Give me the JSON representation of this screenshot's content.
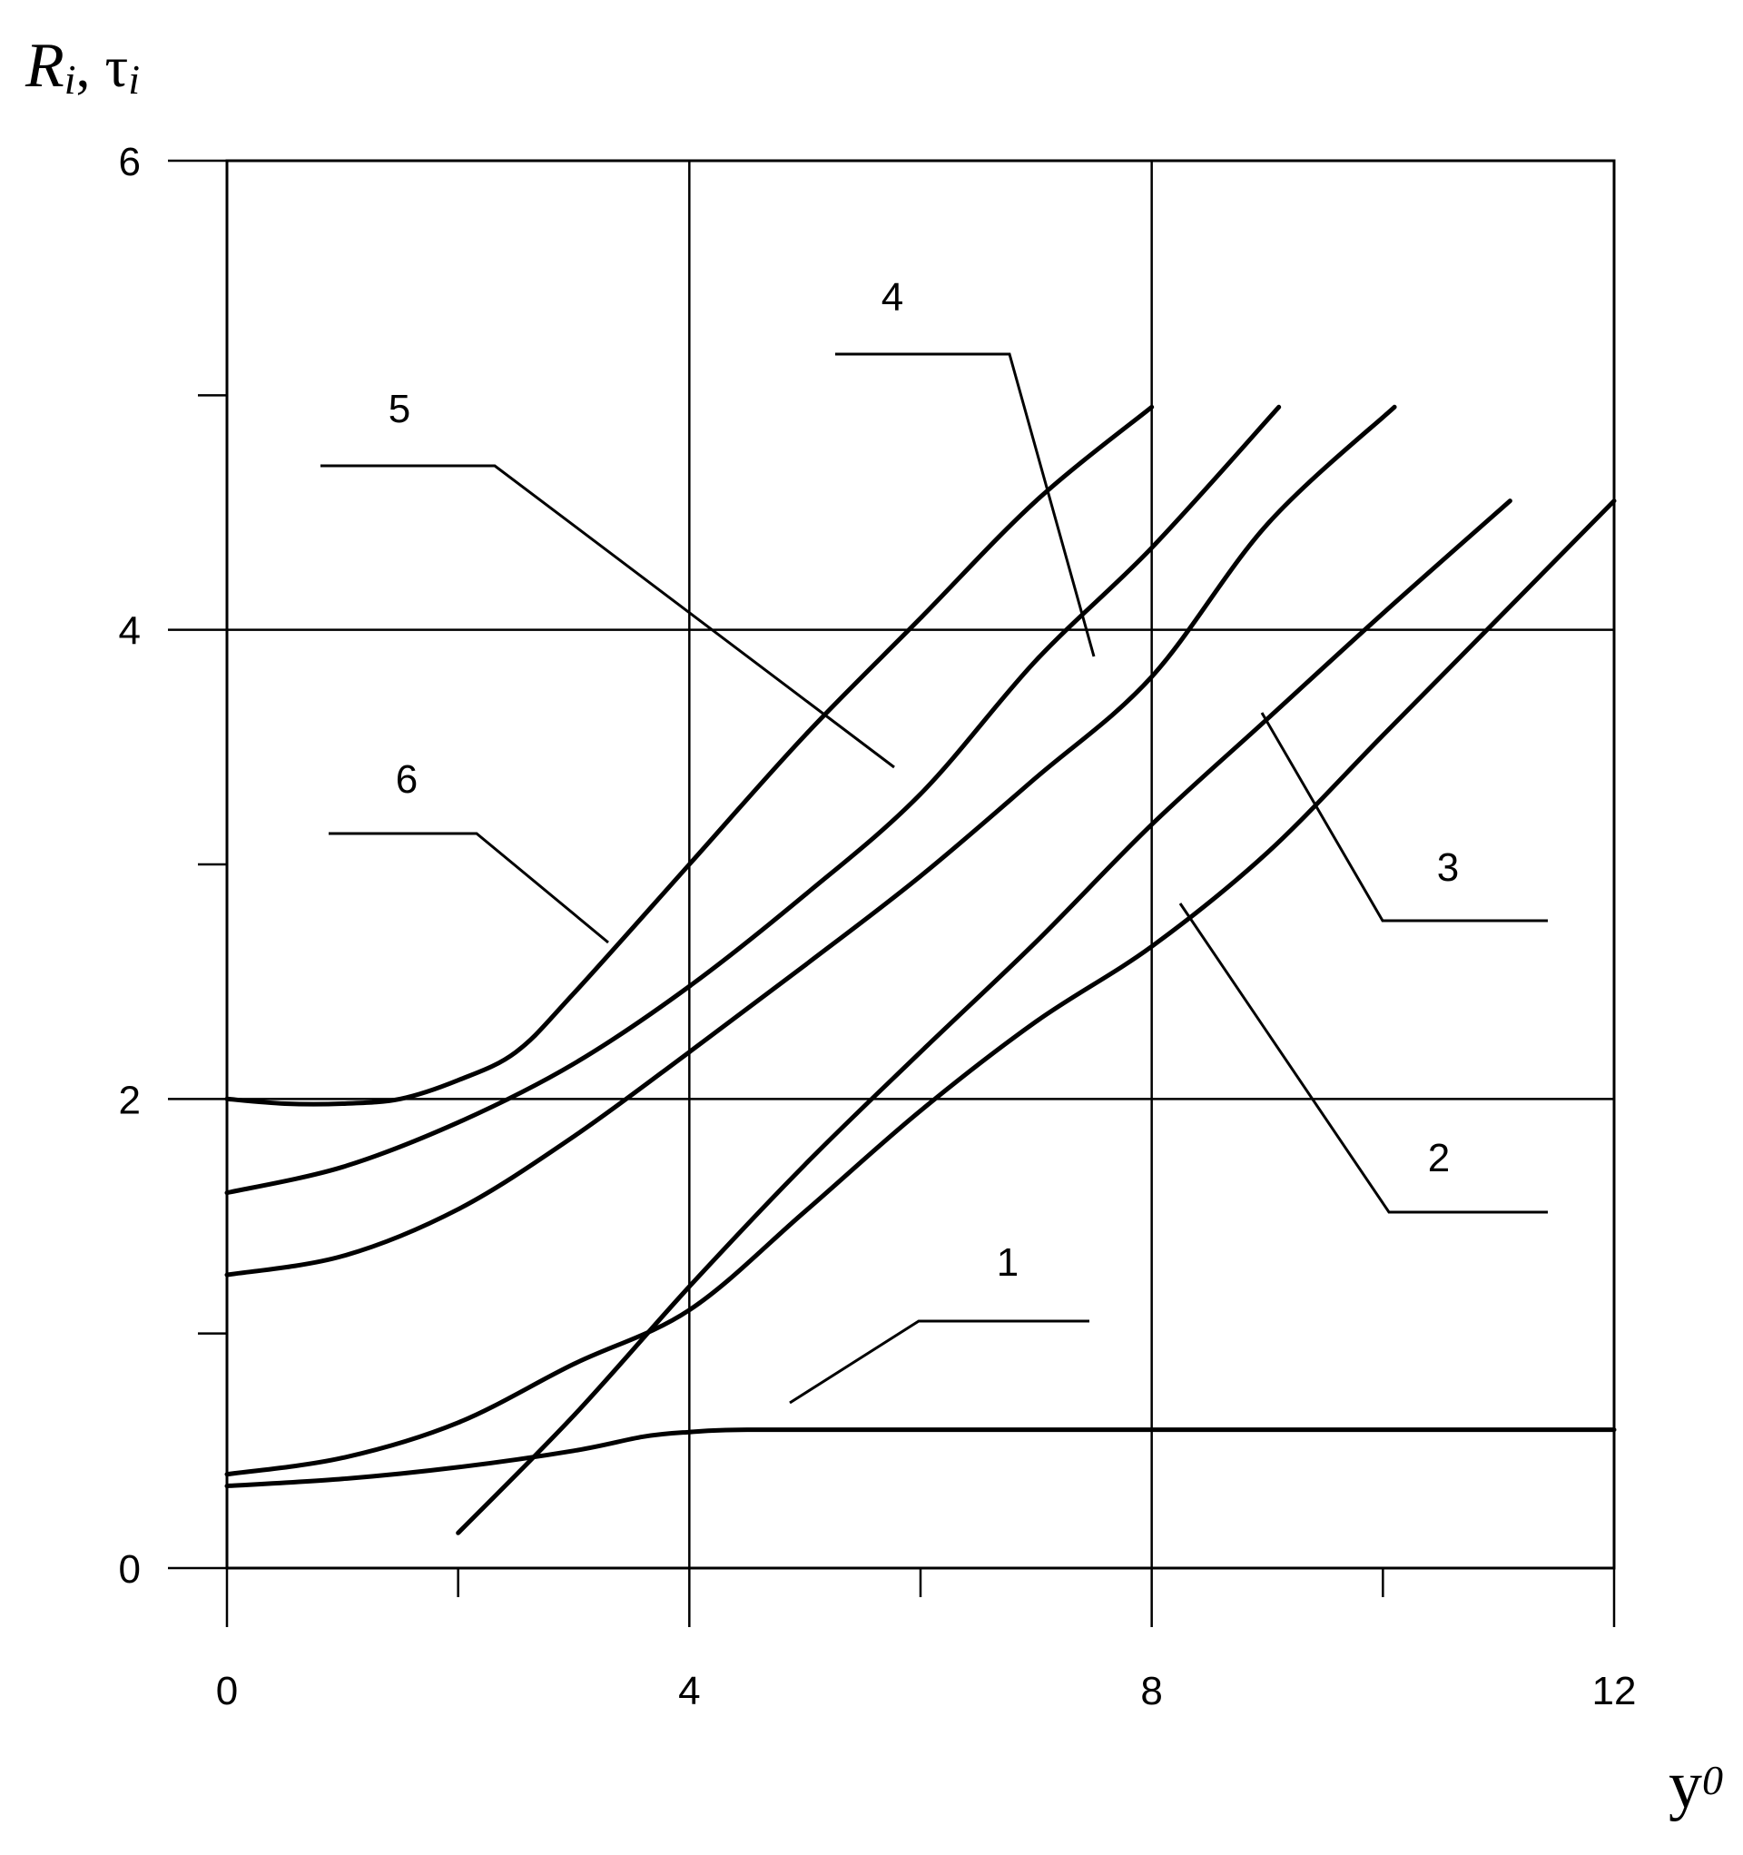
{
  "chart_data": {
    "type": "line",
    "ylabel_main": "R",
    "ylabel_sub": "i",
    "ylabel_sep": ", τ",
    "ylabel_sub2": "i",
    "xlabel_main": "y",
    "xlabel_sub": "0",
    "xlim": [
      0,
      12
    ],
    "ylim": [
      0,
      6
    ],
    "grid": true,
    "x_major_ticks": [
      0,
      4,
      8,
      12
    ],
    "x_tick_labels": [
      "0",
      "4",
      "8",
      "12"
    ],
    "x_minor_ticks": [
      2,
      6,
      10
    ],
    "y_major_ticks": [
      0,
      2,
      4,
      6
    ],
    "y_tick_labels": [
      "0",
      "2",
      "4",
      "6"
    ],
    "y_minor_ticks": [
      1,
      3,
      5
    ],
    "series": [
      {
        "name": "1",
        "x": [
          0,
          1,
          2,
          3,
          3.6,
          4,
          4.5,
          6,
          8,
          10,
          12
        ],
        "y": [
          0.35,
          0.38,
          0.43,
          0.5,
          0.56,
          0.58,
          0.59,
          0.59,
          0.59,
          0.59,
          0.59
        ]
      },
      {
        "name": "2",
        "x": [
          0,
          1,
          2,
          3,
          4,
          5,
          6,
          7,
          8,
          9,
          10,
          11,
          12
        ],
        "y": [
          0.4,
          0.47,
          0.62,
          0.87,
          1.1,
          1.52,
          1.95,
          2.33,
          2.65,
          3.05,
          3.55,
          4.05,
          4.55
        ]
      },
      {
        "name": "3",
        "x": [
          2,
          3,
          4,
          5,
          6,
          7,
          8,
          9,
          10,
          11.1
        ],
        "y": [
          0.15,
          0.65,
          1.2,
          1.72,
          2.2,
          2.67,
          3.17,
          3.62,
          4.07,
          4.55
        ]
      },
      {
        "name": "4",
        "x": [
          0,
          1,
          2,
          3,
          4,
          5,
          6,
          7,
          8,
          9,
          10.1
        ],
        "y": [
          1.25,
          1.33,
          1.53,
          1.84,
          2.2,
          2.57,
          2.95,
          3.37,
          3.8,
          4.45,
          4.95
        ]
      },
      {
        "name": "5",
        "x": [
          0,
          1,
          2,
          3,
          4,
          5,
          6,
          7,
          8,
          9.1
        ],
        "y": [
          1.6,
          1.71,
          1.9,
          2.15,
          2.48,
          2.87,
          3.3,
          3.87,
          4.35,
          4.95
        ]
      },
      {
        "name": "6",
        "x": [
          0,
          0.5,
          1,
          1.5,
          2,
          2.5,
          3,
          4,
          5,
          6,
          7,
          8
        ],
        "y": [
          2.0,
          1.98,
          1.98,
          2.0,
          2.08,
          2.2,
          2.45,
          3.0,
          3.55,
          4.05,
          4.55,
          4.95
        ]
      }
    ]
  }
}
